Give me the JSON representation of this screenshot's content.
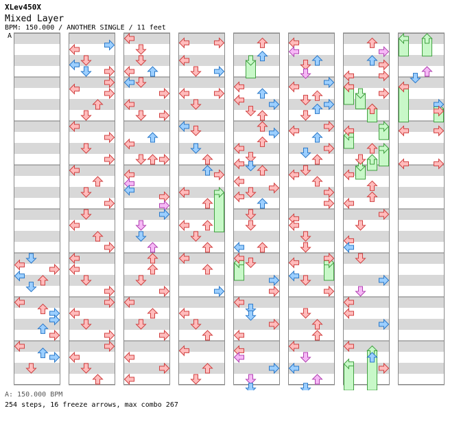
{
  "header": {
    "title": "XLev450X",
    "song": "Mixed Layer",
    "info": "BPM: 150.000 / ANOTHER SINGLE / 11 feet",
    "marker": "A"
  },
  "footer": {
    "bpm_line": "A: 150.000 BPM",
    "stats": "254 steps, 16 freeze arrows, max combo 267"
  },
  "colors": {
    "stripe_dark": "#d8d8d8",
    "stripe_light": "#ffffff",
    "column_border": "#888888",
    "red_fill": "#ffbcbc",
    "red_stroke": "#d04040",
    "blue_fill": "#9ccfff",
    "blue_stroke": "#2a78c8",
    "pink_fill": "#f6b8f6",
    "pink_stroke": "#b040b0",
    "freeze_fill": "#c8f8c8",
    "freeze_stroke": "#40a040"
  },
  "chart": {
    "columns": 8,
    "measures_per_column": 8,
    "notes": [
      [
        0,
        5.0,
        1,
        "blue"
      ],
      [
        0,
        5.15,
        0,
        "red"
      ],
      [
        0,
        5.25,
        3,
        "red"
      ],
      [
        0,
        5.4,
        0,
        "blue"
      ],
      [
        0,
        5.5,
        2,
        "red"
      ],
      [
        0,
        5.65,
        1,
        "blue"
      ],
      [
        0,
        6.0,
        0,
        "red"
      ],
      [
        0,
        6.15,
        2,
        "red"
      ],
      [
        0,
        6.25,
        3,
        "blue"
      ],
      [
        0,
        6.4,
        3,
        "blue"
      ],
      [
        0,
        6.6,
        2,
        "blue"
      ],
      [
        0,
        6.75,
        3,
        "red"
      ],
      [
        0,
        7.0,
        0,
        "red"
      ],
      [
        0,
        7.15,
        2,
        "blue"
      ],
      [
        0,
        7.25,
        3,
        "blue"
      ],
      [
        0,
        7.5,
        1,
        "red"
      ],
      [
        1,
        0.15,
        3,
        "blue"
      ],
      [
        1,
        0.25,
        0,
        "red"
      ],
      [
        1,
        0.5,
        1,
        "red"
      ],
      [
        1,
        0.6,
        0,
        "blue"
      ],
      [
        1,
        0.75,
        1,
        "blue"
      ],
      [
        1,
        0.75,
        3,
        "red"
      ],
      [
        1,
        1.0,
        3,
        "red"
      ],
      [
        1,
        1.15,
        0,
        "red"
      ],
      [
        1,
        1.25,
        3,
        "red"
      ],
      [
        1,
        1.5,
        2,
        "red"
      ],
      [
        1,
        1.75,
        1,
        "red"
      ],
      [
        1,
        2.0,
        0,
        "red"
      ],
      [
        1,
        2.25,
        3,
        "red"
      ],
      [
        1,
        2.5,
        1,
        "red"
      ],
      [
        1,
        2.75,
        3,
        "red"
      ],
      [
        1,
        3.0,
        0,
        "red"
      ],
      [
        1,
        3.25,
        2,
        "red"
      ],
      [
        1,
        3.5,
        1,
        "red"
      ],
      [
        1,
        3.75,
        3,
        "red"
      ],
      [
        1,
        4.0,
        1,
        "red"
      ],
      [
        1,
        4.25,
        0,
        "red"
      ],
      [
        1,
        4.5,
        2,
        "red"
      ],
      [
        1,
        4.75,
        3,
        "red"
      ],
      [
        1,
        5.0,
        0,
        "red"
      ],
      [
        1,
        5.25,
        0,
        "red"
      ],
      [
        1,
        5.5,
        1,
        "red"
      ],
      [
        1,
        5.75,
        3,
        "red"
      ],
      [
        1,
        6.0,
        3,
        "red"
      ],
      [
        1,
        6.25,
        0,
        "red"
      ],
      [
        1,
        6.5,
        1,
        "red"
      ],
      [
        1,
        6.75,
        3,
        "red"
      ],
      [
        1,
        7.0,
        3,
        "red"
      ],
      [
        1,
        7.25,
        0,
        "red"
      ],
      [
        1,
        7.5,
        1,
        "red"
      ],
      [
        1,
        7.75,
        2,
        "red"
      ],
      [
        2,
        0.0,
        0,
        "red"
      ],
      [
        2,
        0.25,
        1,
        "red"
      ],
      [
        2,
        0.5,
        1,
        "red"
      ],
      [
        2,
        0.75,
        0,
        "red"
      ],
      [
        2,
        0.75,
        2,
        "blue"
      ],
      [
        2,
        1.0,
        0,
        "blue"
      ],
      [
        2,
        1.0,
        1,
        "red"
      ],
      [
        2,
        1.25,
        3,
        "red"
      ],
      [
        2,
        1.5,
        0,
        "red"
      ],
      [
        2,
        1.75,
        1,
        "red"
      ],
      [
        2,
        1.75,
        3,
        "red"
      ],
      [
        2,
        2.25,
        2,
        "blue"
      ],
      [
        2,
        2.4,
        0,
        "red"
      ],
      [
        2,
        2.75,
        1,
        "red"
      ],
      [
        2,
        2.75,
        2,
        "red"
      ],
      [
        2,
        2.75,
        3,
        "red"
      ],
      [
        2,
        3.1,
        0,
        "red"
      ],
      [
        2,
        3.3,
        0,
        "pink"
      ],
      [
        2,
        3.45,
        0,
        "blue"
      ],
      [
        2,
        3.6,
        3,
        "red"
      ],
      [
        2,
        3.8,
        3,
        "pink"
      ],
      [
        2,
        4.0,
        3,
        "blue"
      ],
      [
        2,
        4.25,
        1,
        "pink"
      ],
      [
        2,
        4.5,
        1,
        "blue"
      ],
      [
        2,
        4.75,
        2,
        "pink"
      ],
      [
        2,
        5.0,
        2,
        "red"
      ],
      [
        2,
        5.25,
        2,
        "red"
      ],
      [
        2,
        5.5,
        1,
        "red"
      ],
      [
        2,
        5.75,
        3,
        "red"
      ],
      [
        2,
        6.0,
        0,
        "red"
      ],
      [
        2,
        6.25,
        2,
        "red"
      ],
      [
        2,
        6.5,
        1,
        "red"
      ],
      [
        2,
        6.75,
        3,
        "red"
      ],
      [
        2,
        7.25,
        0,
        "red"
      ],
      [
        2,
        7.5,
        3,
        "red"
      ],
      [
        2,
        7.75,
        0,
        "red"
      ],
      [
        3,
        0.1,
        0,
        "red"
      ],
      [
        3,
        0.1,
        3,
        "red"
      ],
      [
        3,
        0.5,
        0,
        "red"
      ],
      [
        3,
        0.75,
        1,
        "red"
      ],
      [
        3,
        0.75,
        3,
        "blue"
      ],
      [
        3,
        1.25,
        0,
        "red"
      ],
      [
        3,
        1.25,
        3,
        "red"
      ],
      [
        3,
        1.5,
        1,
        "red"
      ],
      [
        3,
        2.0,
        0,
        "blue"
      ],
      [
        3,
        2.1,
        1,
        "red"
      ],
      [
        3,
        2.5,
        1,
        "blue"
      ],
      [
        3,
        2.75,
        2,
        "red"
      ],
      [
        3,
        3.0,
        2,
        "blue"
      ],
      [
        3,
        3.1,
        3,
        "red"
      ],
      [
        3,
        3.5,
        0,
        "red"
      ],
      [
        3,
        3.75,
        2,
        "red"
      ],
      [
        3,
        4.25,
        2,
        "red"
      ],
      [
        3,
        4.25,
        0,
        "red"
      ],
      [
        3,
        4.5,
        1,
        "red"
      ],
      [
        3,
        4.75,
        2,
        "red"
      ],
      [
        3,
        5.0,
        0,
        "red"
      ],
      [
        3,
        5.25,
        2,
        "red"
      ],
      [
        3,
        5.75,
        3,
        "blue"
      ],
      [
        3,
        6.25,
        0,
        "red"
      ],
      [
        3,
        6.5,
        1,
        "red"
      ],
      [
        3,
        6.75,
        2,
        "red"
      ],
      [
        3,
        7.1,
        0,
        "red"
      ],
      [
        3,
        7.5,
        2,
        "red"
      ],
      [
        3,
        7.75,
        1,
        "red"
      ],
      [
        4,
        0.1,
        2,
        "red"
      ],
      [
        4,
        0.4,
        2,
        "blue"
      ],
      [
        4,
        1.1,
        0,
        "red"
      ],
      [
        4,
        1.25,
        2,
        "blue"
      ],
      [
        4,
        1.4,
        0,
        "red"
      ],
      [
        4,
        1.5,
        3,
        "blue"
      ],
      [
        4,
        1.65,
        1,
        "red"
      ],
      [
        4,
        1.75,
        2,
        "red"
      ],
      [
        4,
        2.0,
        2,
        "red"
      ],
      [
        4,
        2.15,
        3,
        "blue"
      ],
      [
        4,
        2.35,
        2,
        "red"
      ],
      [
        4,
        2.5,
        0,
        "red"
      ],
      [
        4,
        2.7,
        1,
        "red"
      ],
      [
        4,
        2.85,
        0,
        "red"
      ],
      [
        4,
        2.9,
        1,
        "blue"
      ],
      [
        4,
        3.0,
        2,
        "red"
      ],
      [
        4,
        3.25,
        0,
        "red"
      ],
      [
        4,
        3.4,
        3,
        "red"
      ],
      [
        4,
        3.5,
        1,
        "red"
      ],
      [
        4,
        3.6,
        0,
        "red"
      ],
      [
        4,
        3.75,
        2,
        "blue"
      ],
      [
        4,
        4.0,
        1,
        "red"
      ],
      [
        4,
        4.25,
        1,
        "red"
      ],
      [
        4,
        4.75,
        0,
        "blue"
      ],
      [
        4,
        4.75,
        2,
        "red"
      ],
      [
        4,
        5.0,
        0,
        "red"
      ],
      [
        4,
        5.1,
        1,
        "red"
      ],
      [
        4,
        5.5,
        3,
        "blue"
      ],
      [
        4,
        5.75,
        3,
        "red"
      ],
      [
        4,
        6.0,
        0,
        "red"
      ],
      [
        4,
        6.15,
        1,
        "blue"
      ],
      [
        4,
        6.3,
        1,
        "blue"
      ],
      [
        4,
        6.5,
        3,
        "red"
      ],
      [
        4,
        6.75,
        0,
        "red"
      ],
      [
        4,
        7.1,
        0,
        "red"
      ],
      [
        4,
        7.25,
        0,
        "pink"
      ],
      [
        4,
        7.5,
        3,
        "blue"
      ],
      [
        4,
        7.75,
        1,
        "pink"
      ],
      [
        4,
        7.95,
        1,
        "blue"
      ],
      [
        5,
        0.1,
        0,
        "red"
      ],
      [
        5,
        0.3,
        0,
        "pink"
      ],
      [
        5,
        0.5,
        2,
        "blue"
      ],
      [
        5,
        0.6,
        1,
        "red"
      ],
      [
        5,
        0.8,
        1,
        "pink"
      ],
      [
        5,
        1.0,
        3,
        "blue"
      ],
      [
        5,
        1.1,
        0,
        "red"
      ],
      [
        5,
        1.3,
        2,
        "red"
      ],
      [
        5,
        1.4,
        1,
        "red"
      ],
      [
        5,
        1.5,
        3,
        "blue"
      ],
      [
        5,
        1.6,
        2,
        "blue"
      ],
      [
        5,
        1.75,
        1,
        "red"
      ],
      [
        5,
        2.0,
        3,
        "red"
      ],
      [
        5,
        2.1,
        0,
        "red"
      ],
      [
        5,
        2.25,
        2,
        "blue"
      ],
      [
        5,
        2.5,
        3,
        "red"
      ],
      [
        5,
        2.6,
        1,
        "blue"
      ],
      [
        5,
        2.75,
        2,
        "red"
      ],
      [
        5,
        3.0,
        1,
        "red"
      ],
      [
        5,
        3.1,
        0,
        "red"
      ],
      [
        5,
        3.25,
        2,
        "red"
      ],
      [
        5,
        3.5,
        3,
        "red"
      ],
      [
        5,
        3.75,
        3,
        "red"
      ],
      [
        5,
        4.1,
        0,
        "red"
      ],
      [
        5,
        4.25,
        0,
        "red"
      ],
      [
        5,
        4.5,
        1,
        "red"
      ],
      [
        5,
        4.75,
        1,
        "red"
      ],
      [
        5,
        5.0,
        3,
        "red"
      ],
      [
        5,
        5.1,
        0,
        "red"
      ],
      [
        5,
        5.4,
        0,
        "blue"
      ],
      [
        5,
        5.5,
        1,
        "red"
      ],
      [
        5,
        5.75,
        3,
        "red"
      ],
      [
        5,
        6.25,
        1,
        "red"
      ],
      [
        5,
        6.5,
        2,
        "red"
      ],
      [
        5,
        6.75,
        2,
        "red"
      ],
      [
        5,
        7.0,
        0,
        "red"
      ],
      [
        5,
        7.25,
        1,
        "pink"
      ],
      [
        5,
        7.5,
        0,
        "blue"
      ],
      [
        5,
        7.75,
        2,
        "pink"
      ],
      [
        5,
        7.95,
        1,
        "blue"
      ],
      [
        6,
        0.1,
        2,
        "red"
      ],
      [
        6,
        0.3,
        3,
        "pink"
      ],
      [
        6,
        0.5,
        2,
        "blue"
      ],
      [
        6,
        0.6,
        3,
        "red"
      ],
      [
        6,
        0.85,
        0,
        "red"
      ],
      [
        6,
        0.85,
        3,
        "red"
      ],
      [
        6,
        1.1,
        0,
        "red"
      ],
      [
        6,
        1.25,
        3,
        "red"
      ],
      [
        6,
        1.6,
        2,
        "red"
      ],
      [
        6,
        2.1,
        0,
        "red"
      ],
      [
        6,
        2.5,
        2,
        "red"
      ],
      [
        6,
        2.75,
        1,
        "red"
      ],
      [
        6,
        3.1,
        0,
        "red"
      ],
      [
        6,
        3.35,
        2,
        "red"
      ],
      [
        6,
        3.6,
        2,
        "red"
      ],
      [
        6,
        3.75,
        0,
        "red"
      ],
      [
        6,
        4.0,
        3,
        "red"
      ],
      [
        6,
        4.25,
        1,
        "red"
      ],
      [
        6,
        4.6,
        0,
        "red"
      ],
      [
        6,
        4.75,
        0,
        "blue"
      ],
      [
        6,
        5.0,
        1,
        "red"
      ],
      [
        6,
        5.5,
        3,
        "blue"
      ],
      [
        6,
        5.75,
        1,
        "pink"
      ],
      [
        6,
        6.0,
        0,
        "red"
      ],
      [
        6,
        6.25,
        0,
        "red"
      ],
      [
        6,
        6.5,
        3,
        "blue"
      ],
      [
        6,
        7.0,
        0,
        "red"
      ],
      [
        6,
        7.25,
        2,
        "blue"
      ],
      [
        6,
        7.5,
        3,
        "red"
      ],
      [
        7,
        0.75,
        2,
        "pink"
      ],
      [
        7,
        0.9,
        1,
        "blue"
      ],
      [
        7,
        1.1,
        0,
        "red"
      ],
      [
        7,
        1.5,
        3,
        "blue"
      ],
      [
        7,
        1.65,
        3,
        "red"
      ],
      [
        7,
        2.1,
        0,
        "red"
      ],
      [
        7,
        2.1,
        3,
        "red"
      ],
      [
        7,
        2.85,
        0,
        "red"
      ],
      [
        7,
        2.85,
        3,
        "red"
      ]
    ],
    "freezes": [
      [
        3,
        3.5,
        4.4,
        3
      ],
      [
        4,
        0.5,
        0.9,
        1
      ],
      [
        4,
        5.1,
        5.5,
        0
      ],
      [
        5,
        5.1,
        5.5,
        3
      ],
      [
        6,
        1.1,
        1.5,
        0
      ],
      [
        6,
        1.25,
        1.6,
        1
      ],
      [
        6,
        1.6,
        1.9,
        2
      ],
      [
        6,
        2.0,
        2.3,
        3
      ],
      [
        6,
        2.2,
        2.5,
        0
      ],
      [
        6,
        2.5,
        2.9,
        3
      ],
      [
        6,
        2.75,
        3.0,
        2
      ],
      [
        6,
        2.9,
        3.2,
        1
      ],
      [
        6,
        7.4,
        8.0,
        0
      ],
      [
        6,
        7.1,
        8.0,
        2
      ],
      [
        7,
        0.0,
        0.4,
        0
      ],
      [
        7,
        0.0,
        0.4,
        2
      ],
      [
        7,
        1.1,
        1.9,
        0
      ],
      [
        7,
        1.6,
        1.9,
        3
      ]
    ]
  }
}
